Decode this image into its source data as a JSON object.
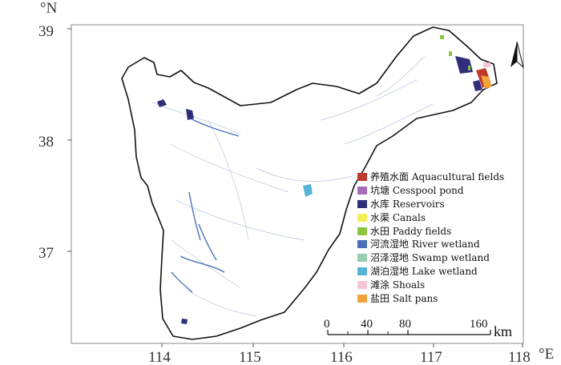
{
  "map": {
    "lat_unit": "°N",
    "lon_unit": "°E",
    "x_ticks": [
      "114",
      "115",
      "116",
      "117",
      "118"
    ],
    "y_ticks": [
      "39",
      "38",
      "37"
    ],
    "legend": [
      {
        "label": "养殖水面 Aquacultural fields",
        "color": "#c0392b"
      },
      {
        "label": "坑塘 Cesspool pond",
        "color": "#a86db8"
      },
      {
        "label": "水库 Reservoirs",
        "color": "#2e2e7a"
      },
      {
        "label": "水渠 Canals",
        "color": "#f4ec5a"
      },
      {
        "label": "水田 Paddy fields",
        "color": "#8cc63f"
      },
      {
        "label": "河流湿地 River wetland",
        "color": "#4a72b8"
      },
      {
        "label": "沼泽湿地 Swamp wetland",
        "color": "#95ceb0"
      },
      {
        "label": "湖泊湿地 Lake wetland",
        "color": "#56b4d8"
      },
      {
        "label": "滩涂 Shoals",
        "color": "#f6c6d8"
      },
      {
        "label": "盐田 Salt pans",
        "color": "#f2a33a"
      }
    ],
    "scale_bar": {
      "ticks": [
        "0",
        "40",
        "80",
        "160"
      ],
      "unit": "km"
    },
    "north_arrow": "north-arrow-icon"
  }
}
